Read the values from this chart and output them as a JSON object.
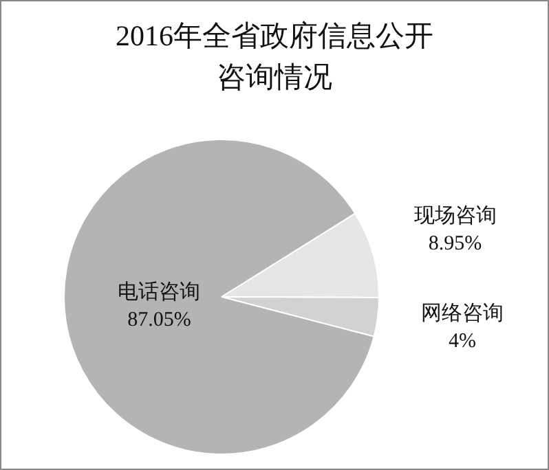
{
  "chart_data": {
    "type": "pie",
    "title": "2016年全省政府信息公开咨询情况",
    "categories": [
      "现场咨询",
      "网络咨询",
      "电话咨询"
    ],
    "values": [
      8.95,
      4,
      87.05
    ],
    "colors": [
      "#e6e6e6",
      "#d2d2d2",
      "#b4b4b4"
    ],
    "value_labels": [
      "8.95%",
      "4%",
      "87.05%"
    ],
    "legend": false
  }
}
